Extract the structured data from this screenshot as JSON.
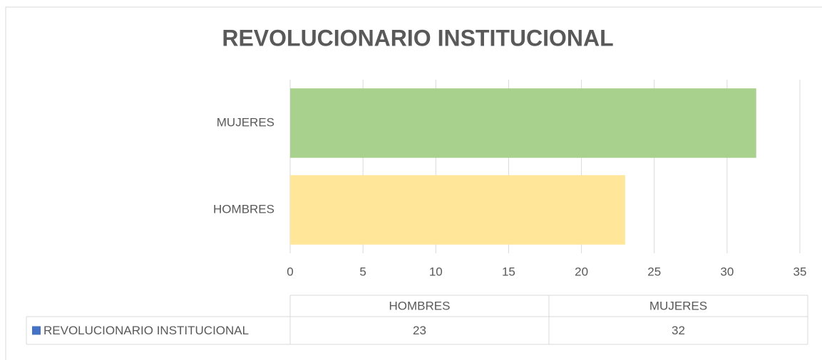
{
  "chart_data": {
    "type": "bar",
    "orientation": "horizontal",
    "title": "REVOLUCIONARIO INSTITUCIONAL",
    "categories": [
      "HOMBRES",
      "MUJERES"
    ],
    "series": [
      {
        "name": "REVOLUCIONARIO INSTITUCIONAL",
        "color": "#4472c4",
        "values": [
          23,
          32
        ]
      }
    ],
    "bar_colors": [
      "#ffe699",
      "#a9d18e"
    ],
    "xlim": [
      0,
      35
    ],
    "xticks": [
      0,
      5,
      10,
      15,
      20,
      25,
      30,
      35
    ],
    "grid": true,
    "data_table": true
  }
}
